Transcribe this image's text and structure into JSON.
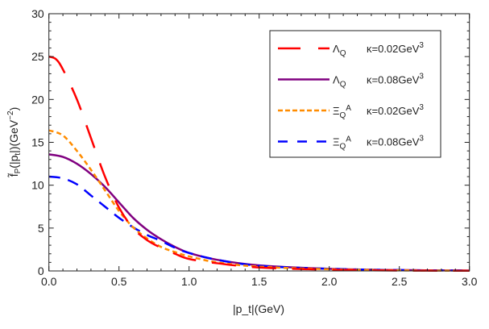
{
  "chart_data": {
    "type": "line",
    "xlabel": "|p_t|(GeV)",
    "ylabel": "f̃_P(|p_t|)(GeV^-2)",
    "xlim": [
      0,
      3
    ],
    "ylim": [
      0,
      30
    ],
    "xticks": [
      "0.0",
      "0.5",
      "1.0",
      "1.5",
      "2.0",
      "2.5",
      "3.0"
    ],
    "yticks": [
      "0",
      "5",
      "10",
      "15",
      "20",
      "25",
      "30"
    ],
    "grid": false,
    "legend_position": "top-right",
    "series": [
      {
        "name": "Λ_Q κ=0.02GeV^3",
        "label_main": "Λ",
        "label_sub": "Q",
        "label_sup": "",
        "label_kappa": "κ=0.02GeV",
        "label_kappa_sup": "3",
        "color": "#ff0000",
        "dash": "long",
        "x": [
          0,
          0.05,
          0.1,
          0.2,
          0.3,
          0.4,
          0.5,
          0.6,
          0.7,
          0.8,
          0.9,
          1.0,
          1.2,
          1.5,
          2.0,
          2.5,
          3.0
        ],
        "y": [
          25,
          24.7,
          23.5,
          20,
          15.5,
          11,
          7.4,
          5,
          3.6,
          2.7,
          2.0,
          1.4,
          0.9,
          0.4,
          0.15,
          0.05,
          0.02
        ]
      },
      {
        "name": "Λ_Q κ=0.08GeV^3",
        "label_main": "Λ",
        "label_sub": "Q",
        "label_sup": "",
        "label_kappa": "κ=0.08GeV",
        "label_kappa_sup": "3",
        "color": "#800080",
        "dash": "solid",
        "x": [
          0,
          0.1,
          0.2,
          0.3,
          0.4,
          0.5,
          0.6,
          0.7,
          0.8,
          0.9,
          1.0,
          1.2,
          1.5,
          2.0,
          2.5,
          3.0
        ],
        "y": [
          13.6,
          13.3,
          12.5,
          11.3,
          9.8,
          8,
          6.2,
          4.8,
          3.7,
          2.8,
          2.1,
          1.3,
          0.65,
          0.25,
          0.1,
          0.05
        ]
      },
      {
        "name": "Ξ_Q^A κ=0.02GeV^3",
        "label_main": "Ξ",
        "label_sub": "Q",
        "label_sup": "A",
        "label_kappa": "κ=0.02GeV",
        "label_kappa_sup": "3",
        "color": "#ff8c00",
        "dash": "short",
        "x": [
          0,
          0.1,
          0.2,
          0.3,
          0.4,
          0.5,
          0.6,
          0.7,
          0.8,
          0.9,
          1.0,
          1.2,
          1.5,
          2.0,
          2.5,
          3.0
        ],
        "y": [
          16.4,
          15.8,
          14,
          11.8,
          9.4,
          7,
          5.1,
          3.8,
          2.8,
          2.2,
          1.7,
          1.0,
          0.5,
          0.2,
          0.07,
          0.03
        ]
      },
      {
        "name": "Ξ_Q^A κ=0.08GeV^3",
        "label_main": "Ξ",
        "label_sub": "Q",
        "label_sup": "A",
        "label_kappa": "κ=0.08GeV",
        "label_kappa_sup": "3",
        "color": "#0000ff",
        "dash": "medium",
        "x": [
          0,
          0.1,
          0.2,
          0.3,
          0.4,
          0.5,
          0.6,
          0.7,
          0.8,
          0.9,
          1.0,
          1.2,
          1.5,
          2.0,
          2.5,
          3.0
        ],
        "y": [
          11,
          10.8,
          10.1,
          8.8,
          7.5,
          6.2,
          5.1,
          4.2,
          3.5,
          2.7,
          2.1,
          1.3,
          0.6,
          0.25,
          0.1,
          0.05
        ]
      }
    ]
  }
}
